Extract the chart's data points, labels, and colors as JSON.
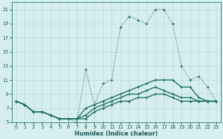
{
  "xlabel": "Humidex (Indice chaleur)",
  "bg_color": "#d6eeed",
  "grid_color": "#b8d8d6",
  "line_color": "#1a6e60",
  "xlim": [
    -0.5,
    23.5
  ],
  "ylim": [
    5,
    22
  ],
  "yticks": [
    5,
    7,
    9,
    11,
    13,
    15,
    17,
    19,
    21
  ],
  "xticks": [
    0,
    1,
    2,
    3,
    4,
    5,
    6,
    7,
    8,
    9,
    10,
    11,
    12,
    13,
    14,
    15,
    16,
    17,
    18,
    19,
    20,
    21,
    22,
    23
  ],
  "series": [
    {
      "x": [
        0,
        1,
        2,
        3,
        4,
        5,
        6,
        7,
        8,
        9,
        10,
        11,
        12,
        13,
        14,
        15,
        16,
        17,
        18,
        19,
        20,
        21,
        22,
        23
      ],
      "y": [
        8,
        7.5,
        6.5,
        6.5,
        6.0,
        5.5,
        5.5,
        5.0,
        12.5,
        7.5,
        10.5,
        11.0,
        18.5,
        20.0,
        19.5,
        19.0,
        21.0,
        21.0,
        19.0,
        13.0,
        11.0,
        11.5,
        10.0,
        8.0
      ],
      "linestyle": ":"
    },
    {
      "x": [
        0,
        1,
        2,
        3,
        4,
        5,
        6,
        7,
        8,
        9,
        10,
        11,
        12,
        13,
        14,
        15,
        16,
        17,
        18,
        19,
        20,
        21,
        22,
        23
      ],
      "y": [
        8,
        7.5,
        6.5,
        6.5,
        6.0,
        5.5,
        5.5,
        5.5,
        7.0,
        7.5,
        8.0,
        8.5,
        9.0,
        9.5,
        10.0,
        10.5,
        11.0,
        11.0,
        11.0,
        10.0,
        10.0,
        8.5,
        8.0,
        8.0
      ],
      "linestyle": "-"
    },
    {
      "x": [
        0,
        1,
        2,
        3,
        4,
        5,
        6,
        7,
        8,
        9,
        10,
        11,
        12,
        13,
        14,
        15,
        16,
        17,
        18,
        19,
        20,
        21,
        22,
        23
      ],
      "y": [
        8,
        7.5,
        6.5,
        6.5,
        6.0,
        5.5,
        5.5,
        5.5,
        6.0,
        7.0,
        7.5,
        8.0,
        8.5,
        9.0,
        9.0,
        9.5,
        10.0,
        9.5,
        9.0,
        8.5,
        8.5,
        8.0,
        8.0,
        8.0
      ],
      "linestyle": "-"
    },
    {
      "x": [
        0,
        1,
        2,
        3,
        4,
        5,
        6,
        7,
        8,
        9,
        10,
        11,
        12,
        13,
        14,
        15,
        16,
        17,
        18,
        19,
        20,
        21,
        22,
        23
      ],
      "y": [
        8,
        7.5,
        6.5,
        6.5,
        6.0,
        5.5,
        5.5,
        5.5,
        5.5,
        6.5,
        7.0,
        7.5,
        8.0,
        8.0,
        8.5,
        8.5,
        9.0,
        9.0,
        8.5,
        8.0,
        8.0,
        8.0,
        8.0,
        8.0
      ],
      "linestyle": "-"
    }
  ]
}
